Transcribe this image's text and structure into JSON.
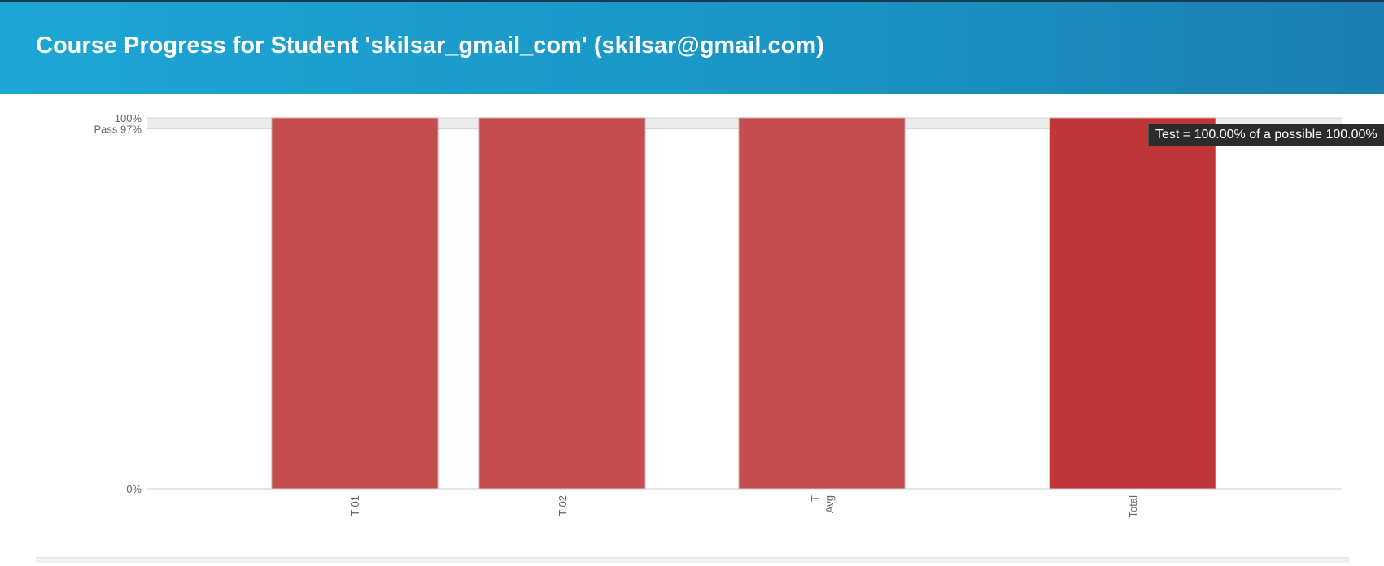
{
  "header": {
    "title": "Course Progress for Student 'skilsar_gmail_com' (skilsar@gmail.com)"
  },
  "tooltip": {
    "text": "Test = 100.00% of a possible 100.00%"
  },
  "colors": {
    "header_start": "#1ca6d4",
    "header_end": "#1a7fb2",
    "bar": "#c44e4f",
    "bar_total": "#bf3538",
    "pass_band": "#ececec"
  },
  "chart_data": {
    "type": "bar",
    "categories": [
      "T 01",
      "T 02",
      "T\nAvg",
      "Total"
    ],
    "values": [
      100,
      100,
      100,
      100
    ],
    "ylim": [
      0,
      100
    ],
    "yticks": [
      {
        "value": 100,
        "label": "100%"
      },
      {
        "value": 97,
        "label": "Pass 97%"
      },
      {
        "value": 0,
        "label": "0%"
      }
    ],
    "pass_threshold": 97,
    "highlighted": "Total"
  }
}
